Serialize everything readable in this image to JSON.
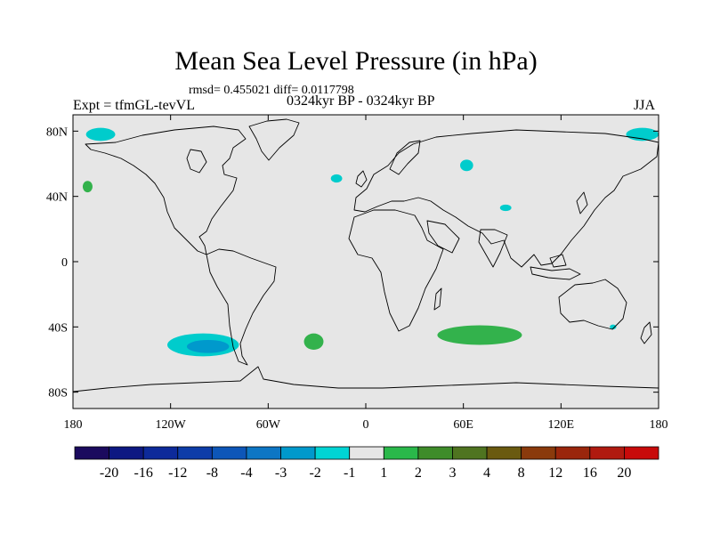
{
  "header": {
    "title": "Mean Sea Level Pressure (in hPa)",
    "subtitle": "rmsd= 0.455021 diff= 0.0117798",
    "left_label": "Expt = tfmGL-tevVL",
    "center_label": "0324kyr BP - 0324kyr BP",
    "right_label": "JJA"
  },
  "map": {
    "lon_range": [
      -180,
      180
    ],
    "lat_range": [
      -90,
      90
    ],
    "background_color": "#e6e6e6",
    "lat_ticks": [
      {
        "value": 80,
        "label": "80N"
      },
      {
        "value": 40,
        "label": "40N"
      },
      {
        "value": 0,
        "label": "0"
      },
      {
        "value": -40,
        "label": "40S"
      },
      {
        "value": -80,
        "label": "80S"
      }
    ],
    "lon_ticks": [
      {
        "value": -180,
        "label": "180"
      },
      {
        "value": -120,
        "label": "120W"
      },
      {
        "value": -60,
        "label": "60W"
      },
      {
        "value": 0,
        "label": "0"
      },
      {
        "value": 60,
        "label": "60E"
      },
      {
        "value": 120,
        "label": "120E"
      },
      {
        "value": 180,
        "label": "180"
      }
    ]
  },
  "chart_data": {
    "type": "heatmap",
    "variable": "Mean Sea Level Pressure difference (hPa)",
    "anomalies": [
      {
        "lon": -163,
        "lat": 78,
        "rx": 9,
        "ry": 4,
        "level": "-2..-1",
        "color": "#00cccc"
      },
      {
        "lon": 170,
        "lat": 78,
        "rx": 10,
        "ry": 4,
        "level": "-2..-1",
        "color": "#00cccc"
      },
      {
        "lon": -171,
        "lat": 46,
        "rx": 3,
        "ry": 3.5,
        "level": "1..2",
        "color": "#33b24c"
      },
      {
        "lon": -18,
        "lat": 51,
        "rx": 3.5,
        "ry": 2.5,
        "level": "-2..-1",
        "color": "#00cccc"
      },
      {
        "lon": 62,
        "lat": 59,
        "rx": 4,
        "ry": 3.5,
        "level": "-2..-1",
        "color": "#00cccc"
      },
      {
        "lon": 86,
        "lat": 33,
        "rx": 3.5,
        "ry": 2,
        "level": "-2..-1",
        "color": "#00cccc"
      },
      {
        "lon": -100,
        "lat": -51,
        "rx": 22,
        "ry": 7,
        "level": "-2..-1",
        "color": "#00cccc"
      },
      {
        "lon": -97,
        "lat": -52,
        "rx": 13,
        "ry": 4,
        "level": "-3..-2",
        "color": "#0099cc"
      },
      {
        "lon": -32,
        "lat": -49,
        "rx": 6,
        "ry": 5,
        "level": "1..2",
        "color": "#33b24c"
      },
      {
        "lon": 70,
        "lat": -45,
        "rx": 26,
        "ry": 6,
        "level": "1..2",
        "color": "#33b24c"
      },
      {
        "lon": 152,
        "lat": -40,
        "rx": 2,
        "ry": 1.5,
        "level": "-2..-1",
        "color": "#00cccc"
      }
    ],
    "colorbar": {
      "labels": [
        "-20",
        "-16",
        "-12",
        "-8",
        "-4",
        "-3",
        "-2",
        "-1",
        "1",
        "2",
        "3",
        "4",
        "8",
        "12",
        "16",
        "20"
      ],
      "colors": [
        "#1b0a5e",
        "#0d1882",
        "#0d2a9a",
        "#0d3ca8",
        "#0d56b8",
        "#0d76c4",
        "#0099cc",
        "#00d4d4",
        "#e6e6e6",
        "#2ab84a",
        "#3e8c2a",
        "#4f7420",
        "#6a5a10",
        "#8a3a0c",
        "#9a260c",
        "#b01a10",
        "#c80a0a"
      ]
    }
  }
}
